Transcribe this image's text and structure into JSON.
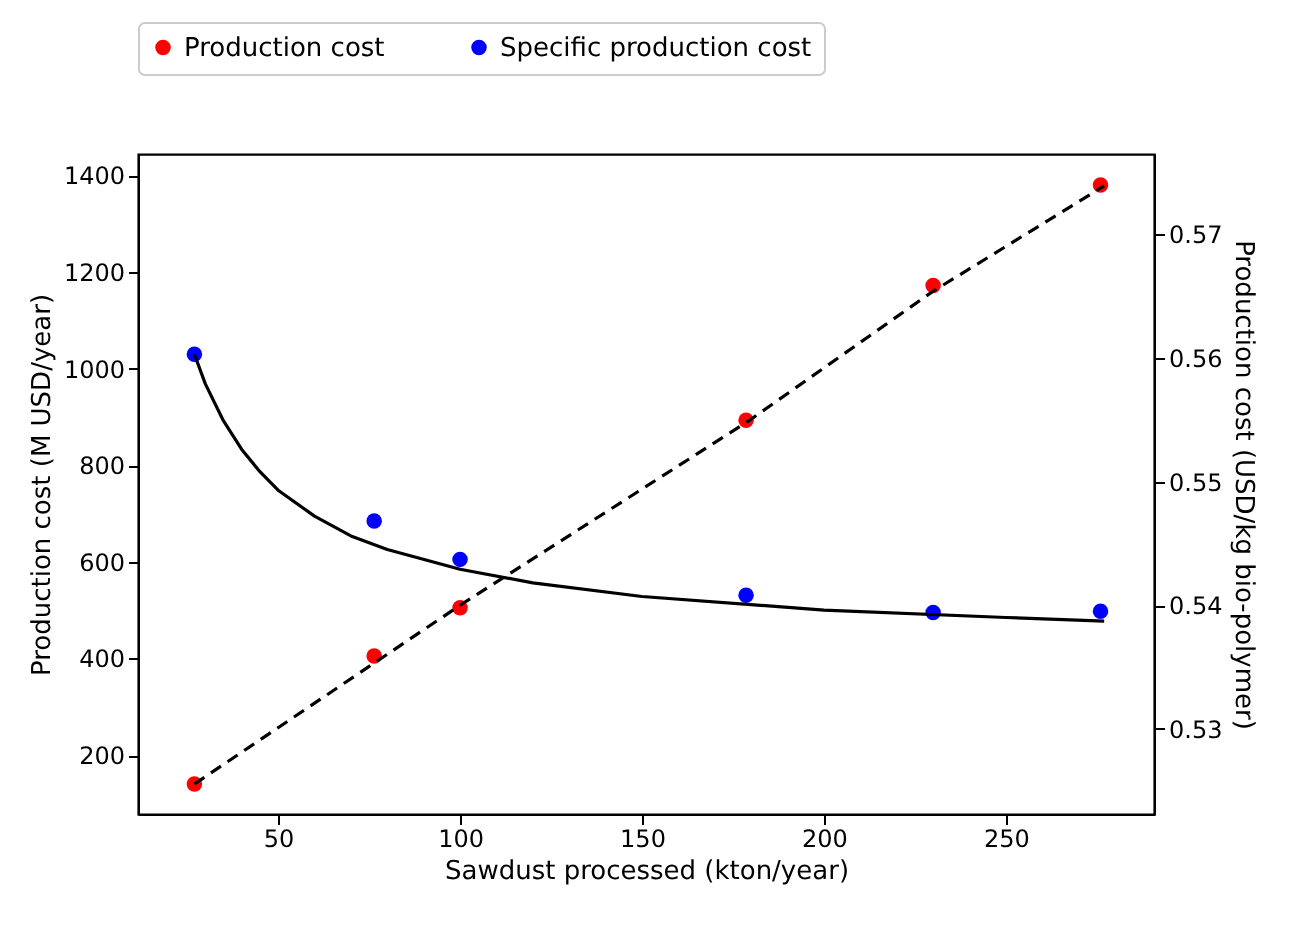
{
  "chart_data": {
    "type": "scatter",
    "xlabel": "Sawdust processed (kton/year)",
    "ylabel": "Production cost (M USD/year)",
    "y2label": "Production cost (USD/kg bio-polymer)",
    "xlim": [
      11.5,
      290.7
    ],
    "xticks": [
      50,
      100,
      150,
      200,
      250
    ],
    "ylim": [
      78,
      1444
    ],
    "yticks": [
      200,
      400,
      600,
      800,
      1000,
      1200,
      1400
    ],
    "y2lim": [
      0.5231,
      0.5765
    ],
    "y2ticks": [
      0.53,
      0.54,
      0.55,
      0.56,
      0.57
    ],
    "legend": "top",
    "marker": "circle",
    "grid": false,
    "series": [
      {
        "name": "Production cost",
        "color": "#ff0000",
        "x": [
          27,
          76.4,
          100,
          178.6,
          230,
          276
        ],
        "values": [
          140,
          405,
          505,
          893,
          1172,
          1380
        ]
      },
      {
        "name": "Specific production cost",
        "color": "#0000ff",
        "axis": "y2",
        "x": [
          27,
          76.4,
          100,
          178.6,
          230,
          276
        ],
        "values": [
          0.5603,
          0.5468,
          0.5437,
          0.5408,
          0.5394,
          0.5395
        ]
      },
      {
        "type": "line",
        "color": "#000000",
        "line_style": "dashed",
        "marker": "none",
        "x": [
          27,
          100,
          179,
          230,
          277
        ],
        "values": [
          140,
          510,
          890,
          1160,
          1378
        ]
      },
      {
        "type": "line",
        "color": "#000000",
        "line_style": "solid",
        "marker": "none",
        "axis": "y2",
        "x": [
          27,
          30,
          35,
          40,
          45,
          50,
          60,
          70,
          80,
          100,
          120,
          150,
          200,
          250,
          277
        ],
        "values": [
          0.5603,
          0.5579,
          0.5549,
          0.5526,
          0.5508,
          0.5493,
          0.5472,
          0.5456,
          0.5445,
          0.5429,
          0.5418,
          0.5407,
          0.5396,
          0.539,
          0.5387
        ]
      }
    ]
  }
}
